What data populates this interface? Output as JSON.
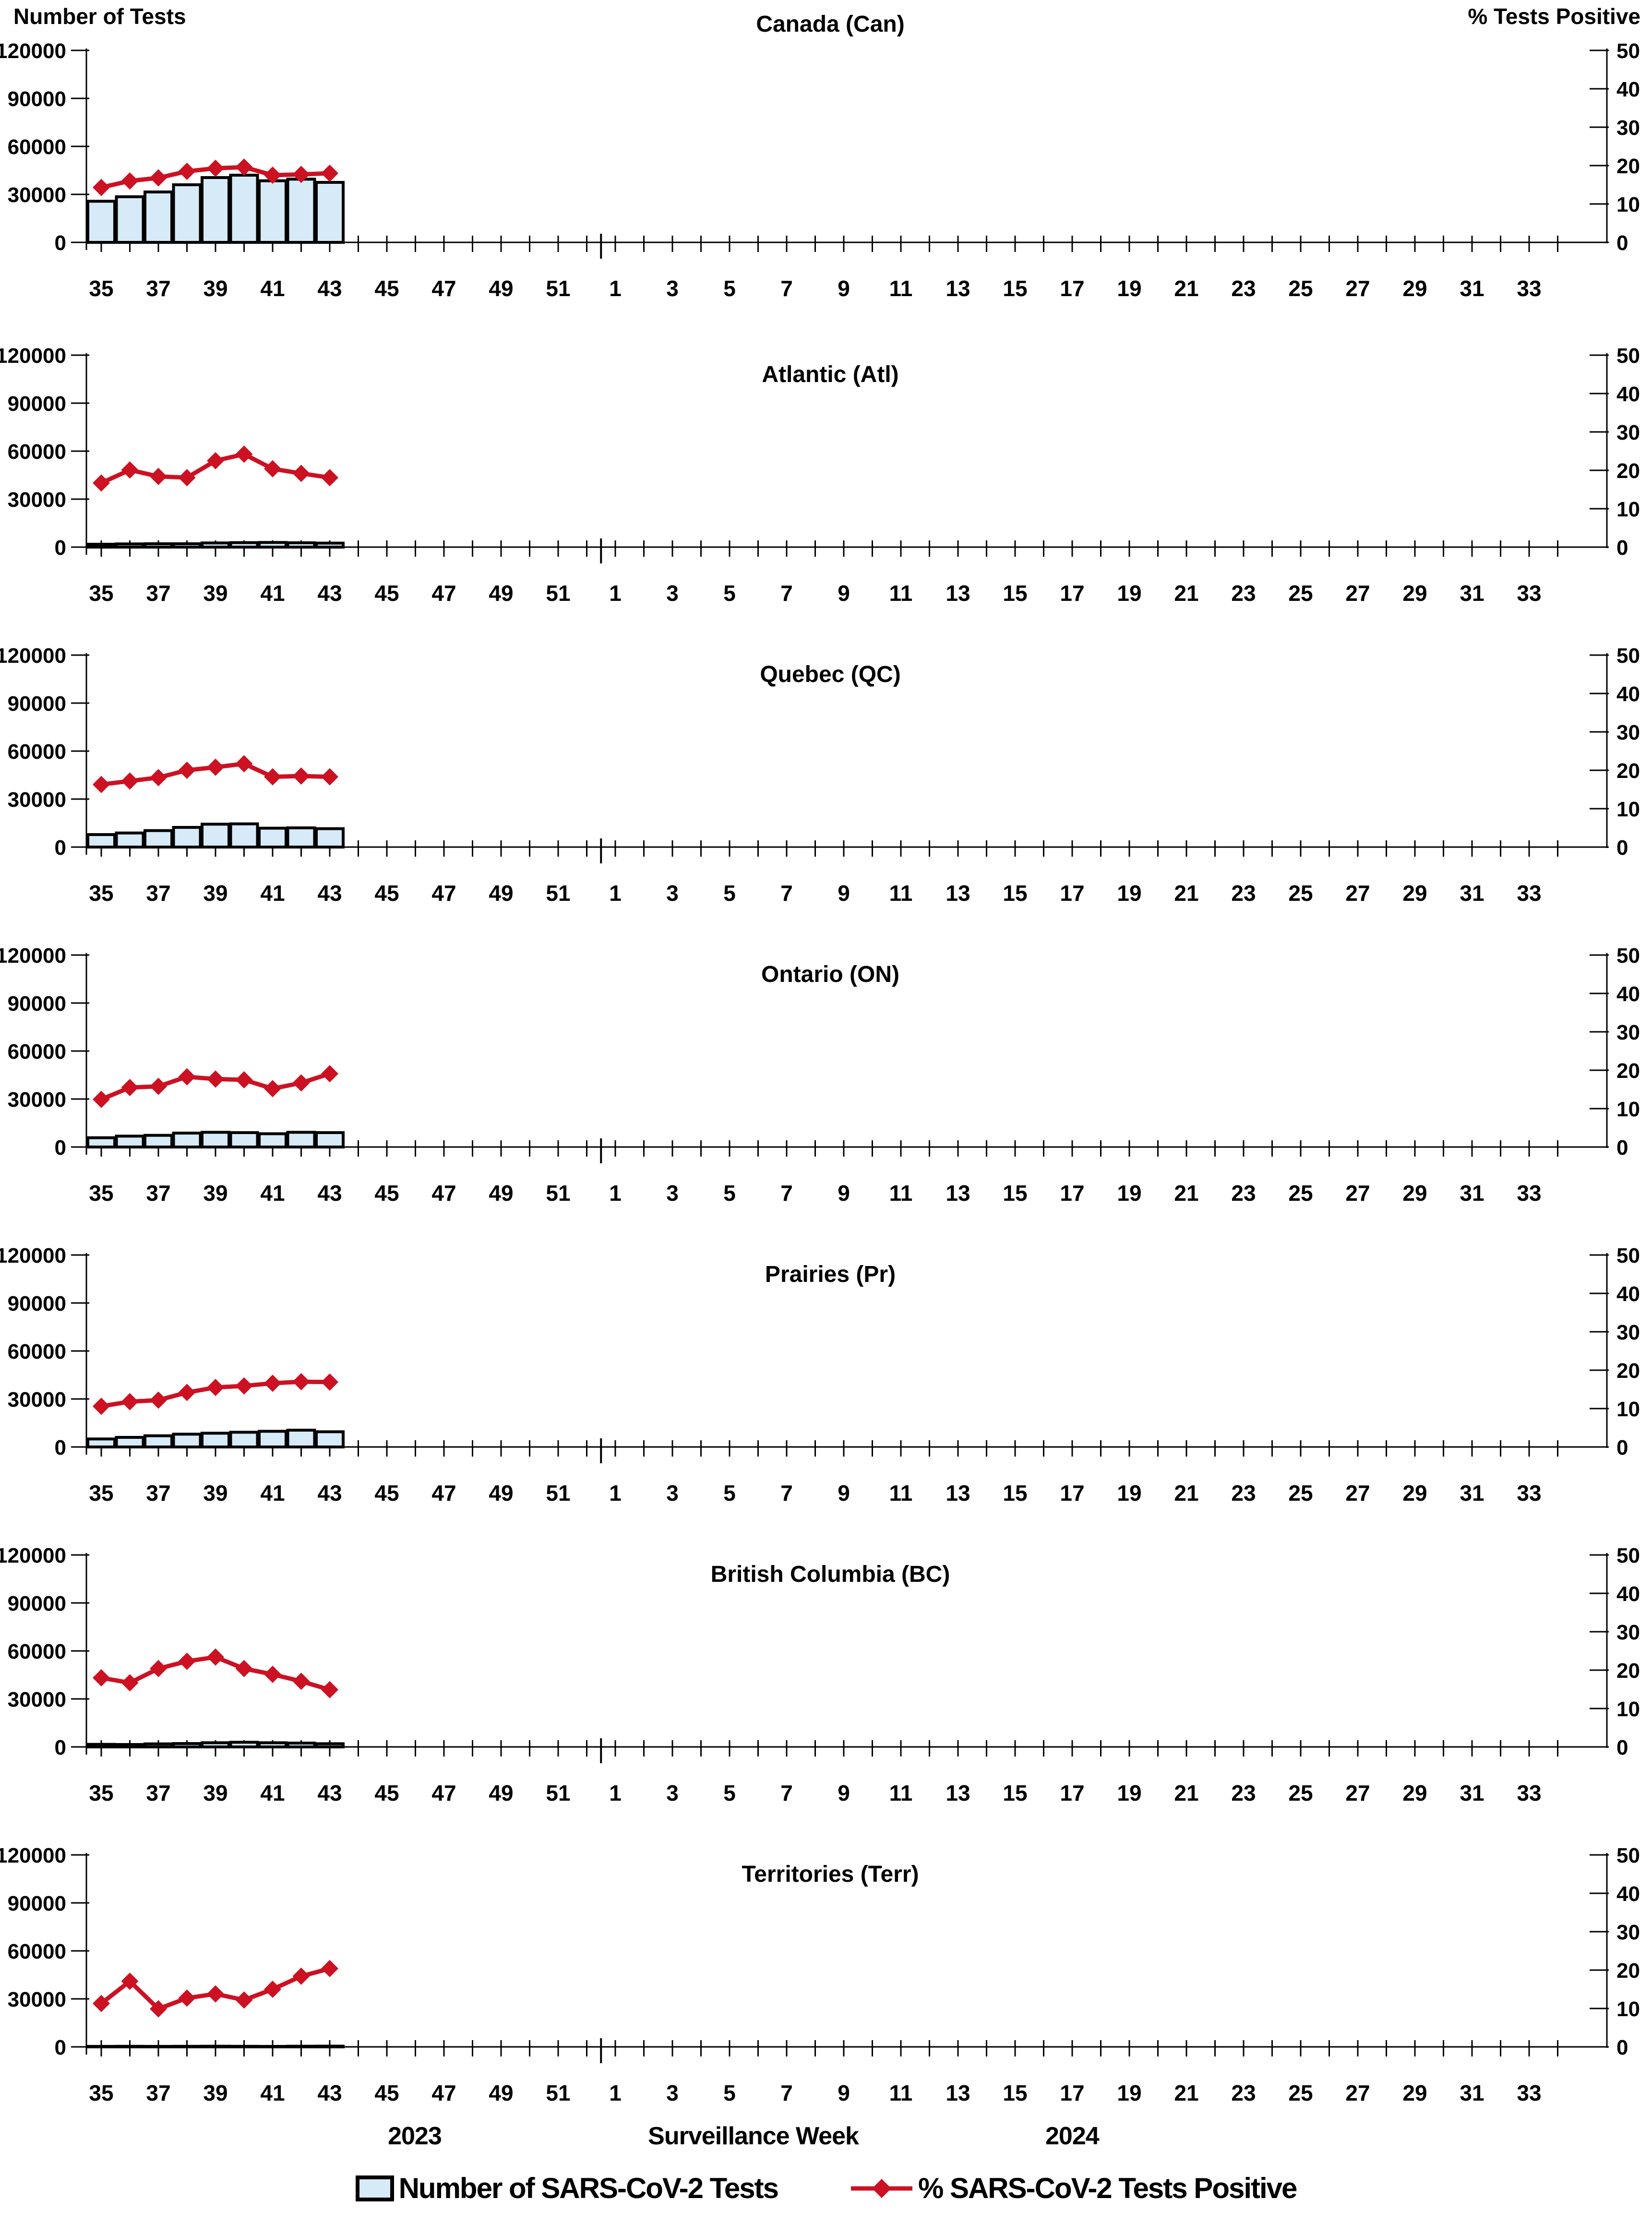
{
  "header": {
    "left_axis_title": "Number of Tests",
    "right_axis_title": "% Tests Positive"
  },
  "footer": {
    "year_left": "2023",
    "axis_title": "Surveillance Week",
    "year_right": "2024"
  },
  "legend": {
    "tests_label": "Number of SARS-CoV-2 Tests",
    "pct_label": "% SARS-CoV-2 Tests Positive"
  },
  "colors": {
    "bar_fill": "#D6EAF8",
    "bar_stroke": "#000000",
    "line": "#CC1122",
    "axis": "#000000"
  },
  "axes": {
    "left_ticks": [
      0,
      30000,
      60000,
      90000,
      120000
    ],
    "left_max": 120000,
    "right_ticks": [
      0,
      10,
      20,
      30,
      40,
      50
    ],
    "right_max": 50,
    "total_weeks": 52,
    "weeks_in_2023": 18,
    "first_week": 35,
    "week_tick_labels": [
      "35",
      "37",
      "39",
      "41",
      "43",
      "45",
      "47",
      "49",
      "51",
      "1",
      "3",
      "5",
      "7",
      "9",
      "11",
      "13",
      "15",
      "17",
      "19",
      "21",
      "23",
      "25",
      "27",
      "29",
      "31",
      "33"
    ]
  },
  "chart_data": [
    {
      "type": "bar+line",
      "region": "Canada (Can)",
      "weeks": [
        35,
        36,
        37,
        38,
        39,
        40,
        41,
        42,
        43
      ],
      "series": [
        {
          "name": "Number of SARS-CoV-2 Tests",
          "axis": "left",
          "values": [
            25700,
            28500,
            31500,
            36000,
            40500,
            42000,
            38500,
            39500,
            37500
          ]
        },
        {
          "name": "% SARS-CoV-2 Tests Positive",
          "axis": "right",
          "values": [
            14.3,
            16.0,
            16.8,
            18.5,
            19.3,
            19.6,
            17.5,
            17.7,
            18.0
          ]
        }
      ]
    },
    {
      "type": "bar+line",
      "region": "Atlantic (Atl)",
      "weeks": [
        35,
        36,
        37,
        38,
        39,
        40,
        41,
        42,
        43
      ],
      "series": [
        {
          "name": "Number of SARS-CoV-2 Tests",
          "axis": "left",
          "values": [
            1800,
            2000,
            2100,
            2100,
            2600,
            2800,
            2900,
            2700,
            2500
          ]
        },
        {
          "name": "% SARS-CoV-2 Tests Positive",
          "axis": "right",
          "values": [
            16.7,
            20.1,
            18.4,
            18.1,
            22.5,
            24.2,
            20.4,
            19.2,
            18.1
          ]
        }
      ]
    },
    {
      "type": "bar+line",
      "region": "Quebec (QC)",
      "weeks": [
        35,
        36,
        37,
        38,
        39,
        40,
        41,
        42,
        43
      ],
      "series": [
        {
          "name": "Number of SARS-CoV-2 Tests",
          "axis": "left",
          "values": [
            7800,
            8800,
            10300,
            12300,
            14300,
            14500,
            11800,
            12000,
            11500
          ]
        },
        {
          "name": "% SARS-CoV-2 Tests Positive",
          "axis": "right",
          "values": [
            16.3,
            17.2,
            18.1,
            20.0,
            20.8,
            21.7,
            18.3,
            18.5,
            18.3
          ]
        }
      ]
    },
    {
      "type": "bar+line",
      "region": "Ontario (ON)",
      "weeks": [
        35,
        36,
        37,
        38,
        39,
        40,
        41,
        42,
        43
      ],
      "series": [
        {
          "name": "Number of SARS-CoV-2 Tests",
          "axis": "left",
          "values": [
            5800,
            6800,
            7300,
            8700,
            9200,
            9000,
            8300,
            9200,
            9000
          ]
        },
        {
          "name": "% SARS-CoV-2 Tests Positive",
          "axis": "right",
          "values": [
            12.4,
            15.5,
            15.8,
            18.3,
            17.7,
            17.5,
            15.2,
            16.7,
            19.1
          ]
        }
      ]
    },
    {
      "type": "bar+line",
      "region": "Prairies (Pr)",
      "weeks": [
        35,
        36,
        37,
        38,
        39,
        40,
        41,
        42,
        43
      ],
      "series": [
        {
          "name": "Number of SARS-CoV-2 Tests",
          "axis": "left",
          "values": [
            5000,
            6000,
            7000,
            8000,
            8600,
            9200,
            9800,
            10500,
            9500
          ]
        },
        {
          "name": "% SARS-CoV-2 Tests Positive",
          "axis": "right",
          "values": [
            10.6,
            11.8,
            12.2,
            14.2,
            15.5,
            15.9,
            16.6,
            17.0,
            16.9
          ]
        }
      ]
    },
    {
      "type": "bar+line",
      "region": "British Columbia (BC)",
      "weeks": [
        35,
        36,
        37,
        38,
        39,
        40,
        41,
        42,
        43
      ],
      "series": [
        {
          "name": "Number of SARS-CoV-2 Tests",
          "axis": "left",
          "values": [
            1600,
            1500,
            1900,
            2100,
            2600,
            2900,
            2600,
            2400,
            2000
          ]
        },
        {
          "name": "% SARS-CoV-2 Tests Positive",
          "axis": "right",
          "values": [
            18.0,
            16.7,
            20.4,
            22.3,
            23.4,
            20.4,
            18.9,
            17.1,
            14.9
          ]
        }
      ]
    },
    {
      "type": "bar+line",
      "region": "Territories (Terr)",
      "weeks": [
        35,
        36,
        37,
        38,
        39,
        40,
        41,
        42,
        43
      ],
      "series": [
        {
          "name": "Number of SARS-CoV-2 Tests",
          "axis": "left",
          "values": [
            300,
            350,
            300,
            350,
            400,
            350,
            300,
            400,
            450
          ]
        },
        {
          "name": "% SARS-CoV-2 Tests Positive",
          "axis": "right",
          "values": [
            11.3,
            17.1,
            9.9,
            12.7,
            13.8,
            12.2,
            15.0,
            18.4,
            20.4
          ]
        }
      ]
    }
  ]
}
